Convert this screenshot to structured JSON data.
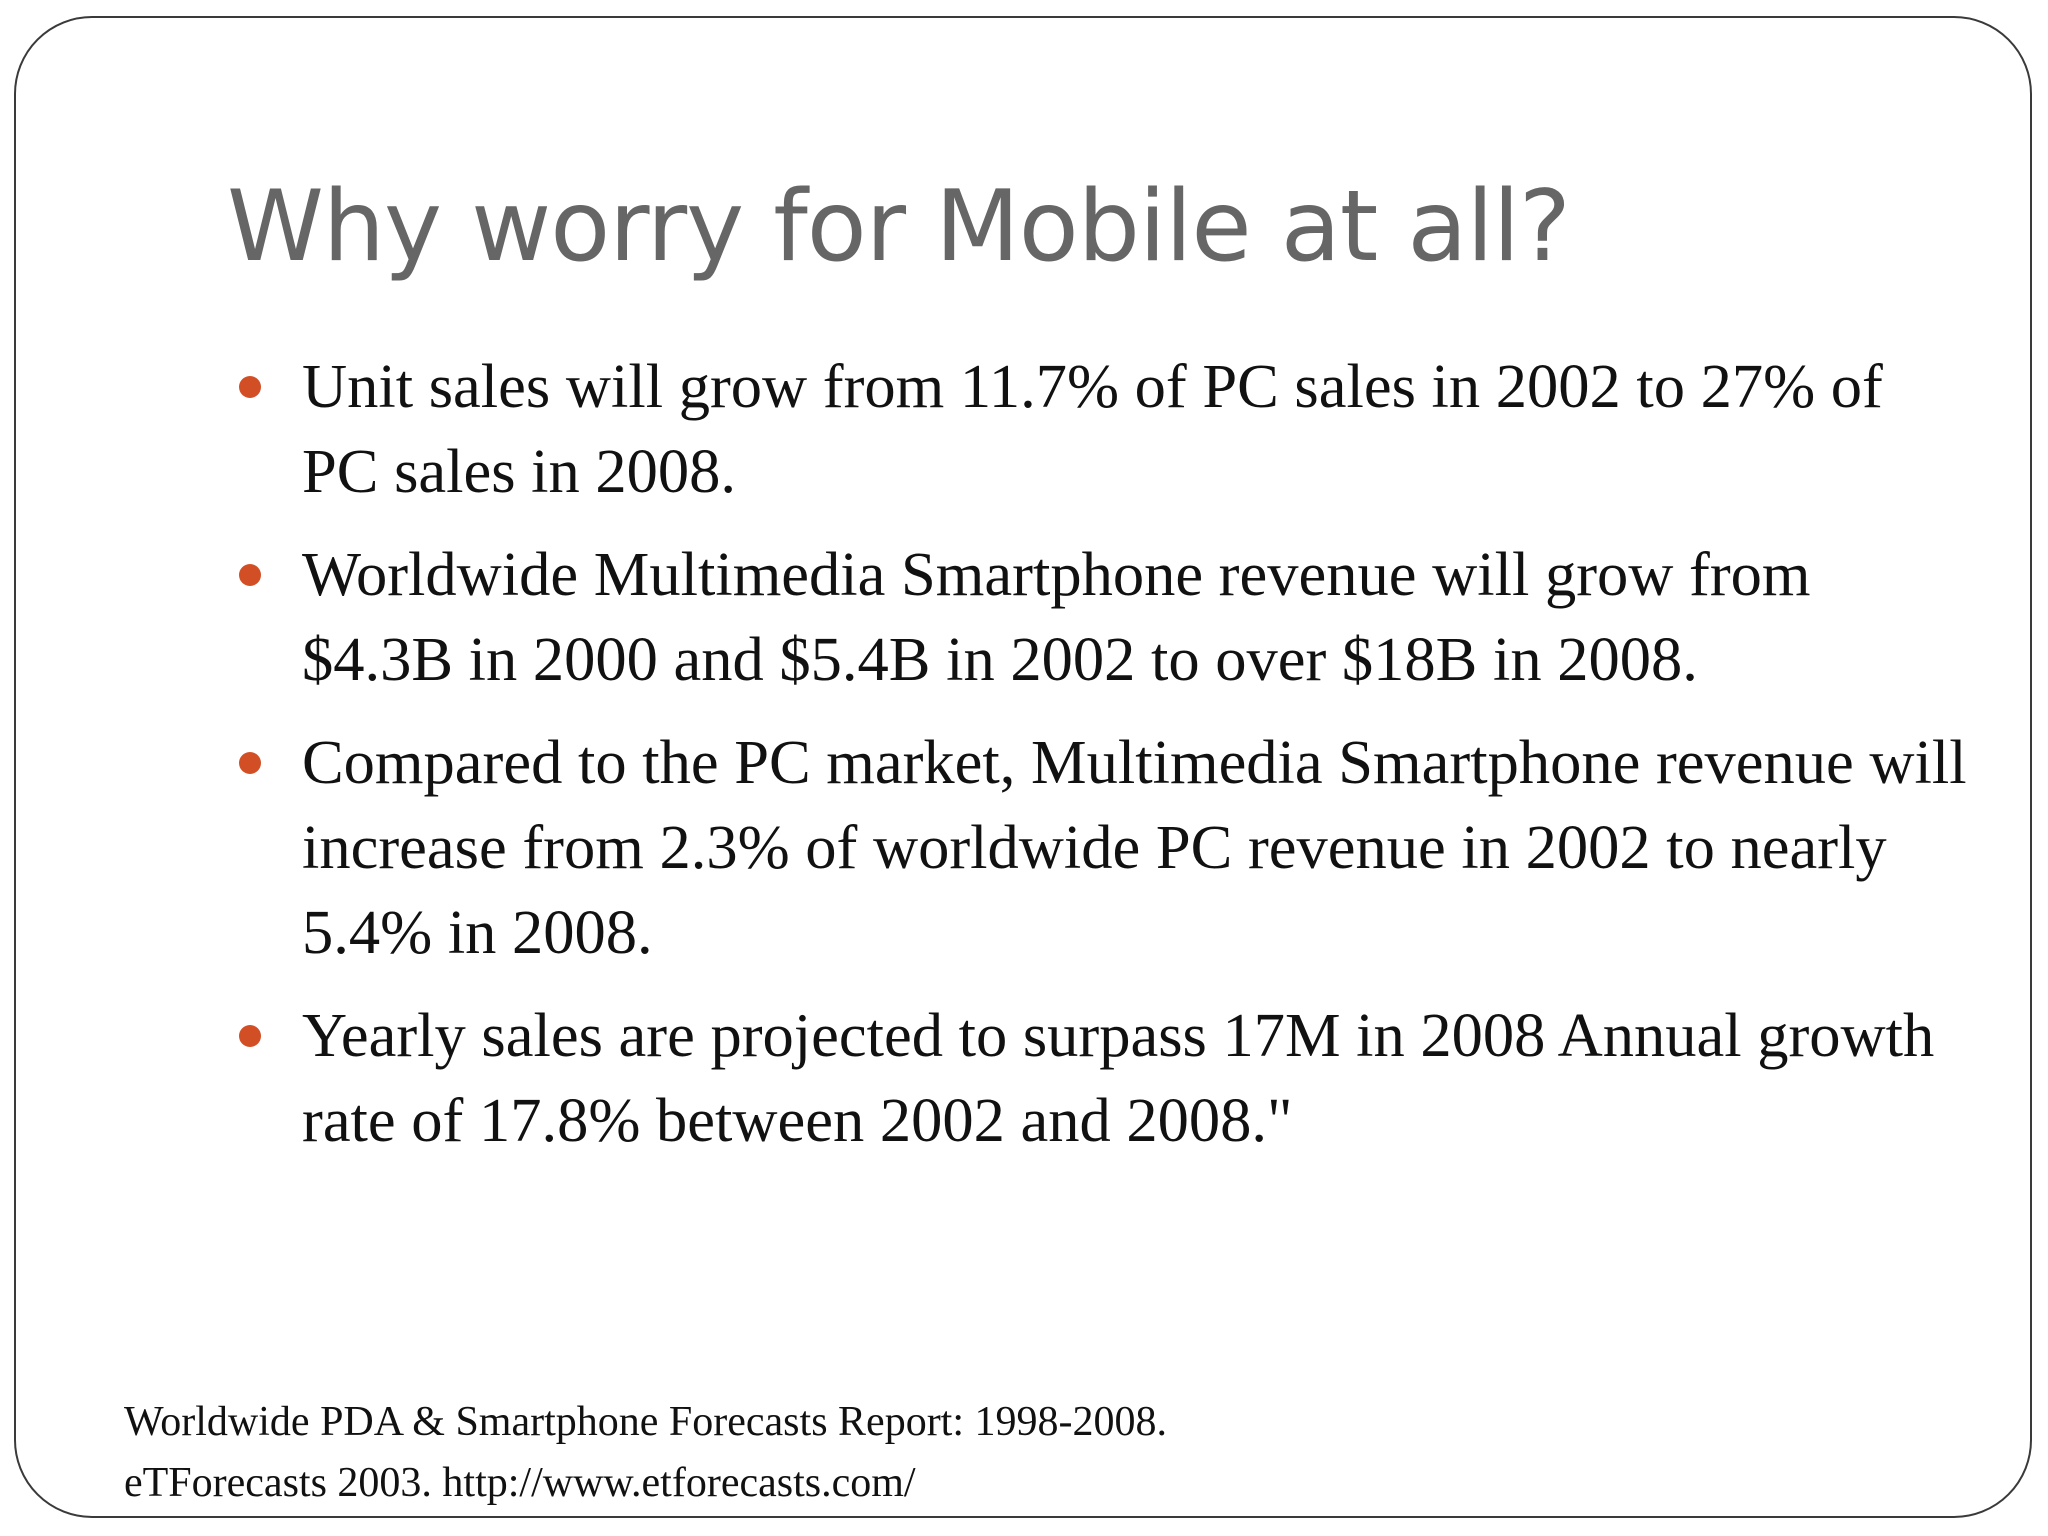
{
  "slide": {
    "title": "Why worry for Mobile at all?",
    "bullets": [
      "Unit sales will grow from 11.7% of PC sales in 2002 to 27% of PC sales in 2008.",
      "Worldwide Multimedia Smartphone revenue will grow from $4.3B in 2000 and $5.4B in 2002 to over $18B in 2008.",
      "Compared to the PC market, Multimedia Smartphone revenue will increase from 2.3% of worldwide PC revenue in 2002 to nearly 5.4% in 2008.",
      "Yearly sales are projected to surpass 17M in 2008 Annual growth rate of 17.8% between 2002 and 2008.\""
    ],
    "source_lines": [
      "Worldwide PDA & Smartphone Forecasts Report: 1998-2008.",
      "eTForecasts 2003. http://www.etforecasts.com/"
    ]
  },
  "colors": {
    "title": "#666666",
    "bullet_marker": "#d24f25",
    "text": "#111111",
    "frame_border": "#3a3a3a"
  }
}
